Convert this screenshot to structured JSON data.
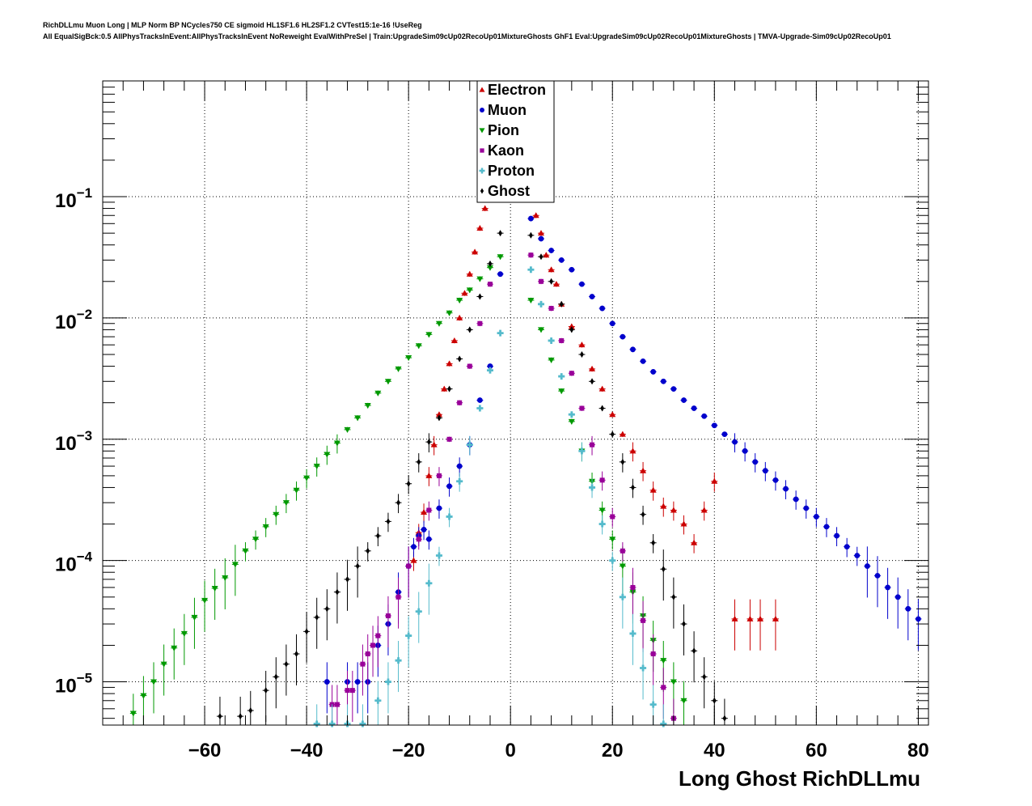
{
  "header": {
    "title_line_1": "RichDLLmu Muon Long | MLP Norm BP NCycles750 CE sigmoid HL1SF1.6 HL2SF1.2 CVTest15:1e-16 !UseReg",
    "title_line_2": "All EqualSigBck:0.5 AllPhysTracksInEvent:AllPhysTracksInEvent NoReweight EvalWithPreSel | Train:UpgradeSim09cUp02RecoUp01MixtureGhosts GhF1 Eval:UpgradeSim09cUp02RecoUp01MixtureGhosts | TMVA-Upgrade-Sim09cUp02RecoUp01"
  },
  "chart_data": {
    "type": "scatter",
    "xlabel": "Long Ghost RichDLLmu",
    "ylabel": "",
    "xlim": [
      -80,
      82
    ],
    "ylim": [
      4.4e-06,
      0.9
    ],
    "y_scale": "log",
    "grid": true,
    "legend_position": "top-center",
    "x_ticks": [
      -60,
      -40,
      -20,
      0,
      20,
      40,
      60,
      80
    ],
    "x_tick_labels": [
      "−60",
      "−40",
      "−20",
      "0",
      "20",
      "40",
      "60",
      "80"
    ],
    "y_ticks": [
      1e-05,
      0.0001,
      0.001,
      0.01,
      0.1
    ],
    "y_tick_labels": [
      {
        "base": "10",
        "exp": "−5"
      },
      {
        "base": "10",
        "exp": "−4"
      },
      {
        "base": "10",
        "exp": "−3"
      },
      {
        "base": "10",
        "exp": "−2"
      },
      {
        "base": "10",
        "exp": "−1"
      }
    ],
    "series": [
      {
        "name": "Electron",
        "color": "#cc0000",
        "marker": "triangle-up",
        "points": [
          [
            -19,
            0.0001
          ],
          [
            -18,
            0.00017
          ],
          [
            -17,
            0.00025
          ],
          [
            -16,
            0.0005
          ],
          [
            -15,
            0.0009
          ],
          [
            -14,
            0.0016
          ],
          [
            -13,
            0.0026
          ],
          [
            -12,
            0.0042
          ],
          [
            -11,
            0.0065
          ],
          [
            -10,
            0.01
          ],
          [
            -9,
            0.016
          ],
          [
            -8,
            0.023
          ],
          [
            -7,
            0.035
          ],
          [
            -6,
            0.055
          ],
          [
            -5,
            0.08
          ],
          [
            5,
            0.07
          ],
          [
            6,
            0.05
          ],
          [
            7,
            0.033
          ],
          [
            8,
            0.025
          ],
          [
            9,
            0.019
          ],
          [
            10,
            0.013
          ],
          [
            12,
            0.0085
          ],
          [
            14,
            0.006
          ],
          [
            16,
            0.0038
          ],
          [
            18,
            0.0026
          ],
          [
            20,
            0.0016
          ],
          [
            22,
            0.0011
          ],
          [
            24,
            0.0008
          ],
          [
            26,
            0.00055
          ],
          [
            28,
            0.00038
          ],
          [
            30,
            0.00028
          ],
          [
            32,
            0.00026
          ],
          [
            34,
            0.0002
          ],
          [
            36,
            0.00014
          ],
          [
            38,
            0.00026
          ],
          [
            40,
            0.00045
          ],
          [
            44,
            3.3e-05
          ],
          [
            47,
            3.3e-05
          ],
          [
            49,
            3.3e-05
          ],
          [
            52,
            3.3e-05
          ]
        ]
      },
      {
        "name": "Muon",
        "color": "#0000cc",
        "marker": "circle",
        "points": [
          [
            -36,
            1e-05
          ],
          [
            -32,
            1e-05
          ],
          [
            -30,
            1e-05
          ],
          [
            -28,
            1e-05
          ],
          [
            -26,
            2e-05
          ],
          [
            -24,
            3e-05
          ],
          [
            -22,
            5.5e-05
          ],
          [
            -20,
            9e-05
          ],
          [
            -19,
            0.00013
          ],
          [
            -18,
            0.00016
          ],
          [
            -17,
            0.00018
          ],
          [
            -16,
            0.00015
          ],
          [
            -14,
            0.00027
          ],
          [
            -12,
            0.00041
          ],
          [
            -10,
            0.0006
          ],
          [
            -8,
            0.0009
          ],
          [
            -6,
            0.0021
          ],
          [
            -4,
            0.004
          ],
          [
            -2,
            0.023
          ],
          [
            4,
            0.066
          ],
          [
            6,
            0.045
          ],
          [
            8,
            0.036
          ],
          [
            10,
            0.03
          ],
          [
            12,
            0.025
          ],
          [
            14,
            0.019
          ],
          [
            16,
            0.015
          ],
          [
            18,
            0.012
          ],
          [
            20,
            0.009
          ],
          [
            22,
            0.007
          ],
          [
            24,
            0.0055
          ],
          [
            26,
            0.0044
          ],
          [
            28,
            0.0036
          ],
          [
            30,
            0.003
          ],
          [
            32,
            0.0026
          ],
          [
            34,
            0.0021
          ],
          [
            36,
            0.0018
          ],
          [
            38,
            0.00155
          ],
          [
            40,
            0.0013
          ],
          [
            42,
            0.0011
          ],
          [
            44,
            0.00095
          ],
          [
            46,
            0.0008
          ],
          [
            48,
            0.00065
          ],
          [
            50,
            0.00055
          ],
          [
            52,
            0.00046
          ],
          [
            54,
            0.00039
          ],
          [
            56,
            0.00032
          ],
          [
            58,
            0.00027
          ],
          [
            60,
            0.00023
          ],
          [
            62,
            0.00019
          ],
          [
            64,
            0.00016
          ],
          [
            66,
            0.00013
          ],
          [
            68,
            0.00011
          ],
          [
            70,
            9e-05
          ],
          [
            72,
            7.5e-05
          ],
          [
            74,
            6e-05
          ],
          [
            76,
            5e-05
          ],
          [
            78,
            4e-05
          ],
          [
            80,
            3.3e-05
          ]
        ]
      },
      {
        "name": "Pion",
        "color": "#009900",
        "marker": "triangle-down",
        "points": [
          [
            -74,
            5.5e-06
          ],
          [
            -72,
            7.7e-06
          ],
          [
            -70,
            1e-05
          ],
          [
            -68,
            1.4e-05
          ],
          [
            -66,
            1.9e-05
          ],
          [
            -64,
            2.5e-05
          ],
          [
            -62,
            3.4e-05
          ],
          [
            -60,
            4.7e-05
          ],
          [
            -58,
            5.9e-05
          ],
          [
            -56,
            7.2e-05
          ],
          [
            -54,
            9.3e-05
          ],
          [
            -52,
            0.00012
          ],
          [
            -50,
            0.00015
          ],
          [
            -48,
            0.00019
          ],
          [
            -46,
            0.00024
          ],
          [
            -44,
            0.0003
          ],
          [
            -42,
            0.00038
          ],
          [
            -40,
            0.00048
          ],
          [
            -38,
            0.0006
          ],
          [
            -36,
            0.00075
          ],
          [
            -34,
            0.00093
          ],
          [
            -32,
            0.0012
          ],
          [
            -30,
            0.0015
          ],
          [
            -28,
            0.0019
          ],
          [
            -26,
            0.0024
          ],
          [
            -24,
            0.003
          ],
          [
            -22,
            0.0038
          ],
          [
            -20,
            0.0047
          ],
          [
            -18,
            0.0059
          ],
          [
            -16,
            0.0073
          ],
          [
            -14,
            0.009
          ],
          [
            -12,
            0.011
          ],
          [
            -10,
            0.014
          ],
          [
            -8,
            0.017
          ],
          [
            -6,
            0.021
          ],
          [
            -4,
            0.026
          ],
          [
            -2,
            0.032
          ],
          [
            4,
            0.014
          ],
          [
            6,
            0.008
          ],
          [
            8,
            0.0045
          ],
          [
            10,
            0.0025
          ],
          [
            12,
            0.0014
          ],
          [
            14,
            0.0008
          ],
          [
            16,
            0.00045
          ],
          [
            18,
            0.00026
          ],
          [
            20,
            0.00015
          ],
          [
            22,
            9e-05
          ],
          [
            24,
            5.5e-05
          ],
          [
            26,
            3.5e-05
          ],
          [
            28,
            2.2e-05
          ],
          [
            30,
            1.5e-05
          ],
          [
            32,
            1e-05
          ],
          [
            34,
            7e-06
          ]
        ]
      },
      {
        "name": "Kaon",
        "color": "#990099",
        "marker": "square",
        "points": [
          [
            -35,
            6.5e-06
          ],
          [
            -34,
            6.5e-06
          ],
          [
            -32,
            8.5e-06
          ],
          [
            -31,
            8.5e-06
          ],
          [
            -29,
            1.4e-05
          ],
          [
            -28,
            1.7e-05
          ],
          [
            -27,
            2e-05
          ],
          [
            -26,
            2.4e-05
          ],
          [
            -24,
            3.5e-05
          ],
          [
            -22,
            5e-05
          ],
          [
            -20,
            9e-05
          ],
          [
            -18,
            0.00015
          ],
          [
            -16,
            0.00026
          ],
          [
            -14,
            0.0005
          ],
          [
            -12,
            0.001
          ],
          [
            -10,
            0.002
          ],
          [
            -8,
            0.004
          ],
          [
            -6,
            0.009
          ],
          [
            -4,
            0.019
          ],
          [
            4,
            0.033
          ],
          [
            6,
            0.02
          ],
          [
            8,
            0.012
          ],
          [
            10,
            0.0065
          ],
          [
            12,
            0.0035
          ],
          [
            14,
            0.0018
          ],
          [
            16,
            0.0009
          ],
          [
            18,
            0.00046
          ],
          [
            20,
            0.00023
          ],
          [
            22,
            0.00012
          ],
          [
            24,
            6e-05
          ],
          [
            26,
            3.2e-05
          ],
          [
            28,
            1.7e-05
          ],
          [
            30,
            9e-06
          ],
          [
            32,
            5e-06
          ]
        ]
      },
      {
        "name": "Proton",
        "color": "#55bbcc",
        "marker": "cross",
        "points": [
          [
            -38,
            4.5e-06
          ],
          [
            -35,
            4.5e-06
          ],
          [
            -32,
            4.5e-06
          ],
          [
            -29,
            4.5e-06
          ],
          [
            -26,
            7e-06
          ],
          [
            -24,
            1e-05
          ],
          [
            -22,
            1.5e-05
          ],
          [
            -20,
            2.4e-05
          ],
          [
            -18,
            3.8e-05
          ],
          [
            -16,
            6.5e-05
          ],
          [
            -14,
            0.00011
          ],
          [
            -12,
            0.00023
          ],
          [
            -10,
            0.00045
          ],
          [
            -8,
            0.0009
          ],
          [
            -6,
            0.0018
          ],
          [
            -4,
            0.0037
          ],
          [
            -2,
            0.0075
          ],
          [
            4,
            0.025
          ],
          [
            6,
            0.013
          ],
          [
            8,
            0.0065
          ],
          [
            10,
            0.0033
          ],
          [
            12,
            0.0016
          ],
          [
            14,
            0.0008
          ],
          [
            16,
            0.0004
          ],
          [
            18,
            0.0002
          ],
          [
            20,
            0.0001
          ],
          [
            22,
            5e-05
          ],
          [
            24,
            2.5e-05
          ],
          [
            26,
            1.3e-05
          ],
          [
            28,
            6.5e-06
          ],
          [
            30,
            4.5e-06
          ]
        ]
      },
      {
        "name": "Ghost",
        "color": "#000000",
        "marker": "diamond",
        "points": [
          [
            -57,
            5.2e-06
          ],
          [
            -53,
            5.2e-06
          ],
          [
            -51,
            5.8e-06
          ],
          [
            -48,
            8.5e-06
          ],
          [
            -46,
            1.1e-05
          ],
          [
            -44,
            1.4e-05
          ],
          [
            -42,
            1.7e-05
          ],
          [
            -40,
            2.6e-05
          ],
          [
            -38,
            3.4e-05
          ],
          [
            -36,
            4e-05
          ],
          [
            -34,
            5.5e-05
          ],
          [
            -32,
            7e-05
          ],
          [
            -30,
            9e-05
          ],
          [
            -28,
            0.00012
          ],
          [
            -26,
            0.00016
          ],
          [
            -24,
            0.00021
          ],
          [
            -22,
            0.0003
          ],
          [
            -20,
            0.00043
          ],
          [
            -18,
            0.00065
          ],
          [
            -16,
            0.00095
          ],
          [
            -14,
            0.0015
          ],
          [
            -12,
            0.0026
          ],
          [
            -10,
            0.0046
          ],
          [
            -8,
            0.008
          ],
          [
            -6,
            0.015
          ],
          [
            -4,
            0.028
          ],
          [
            -2,
            0.05
          ],
          [
            4,
            0.048
          ],
          [
            6,
            0.032
          ],
          [
            8,
            0.02
          ],
          [
            10,
            0.013
          ],
          [
            12,
            0.008
          ],
          [
            14,
            0.005
          ],
          [
            16,
            0.003
          ],
          [
            18,
            0.0018
          ],
          [
            20,
            0.0011
          ],
          [
            22,
            0.00065
          ],
          [
            24,
            0.0004
          ],
          [
            26,
            0.00024
          ],
          [
            28,
            0.00014
          ],
          [
            30,
            8.5e-05
          ],
          [
            32,
            5e-05
          ],
          [
            34,
            3e-05
          ],
          [
            36,
            1.8e-05
          ],
          [
            38,
            1.1e-05
          ],
          [
            40,
            7e-06
          ],
          [
            42,
            5e-06
          ]
        ]
      }
    ]
  }
}
